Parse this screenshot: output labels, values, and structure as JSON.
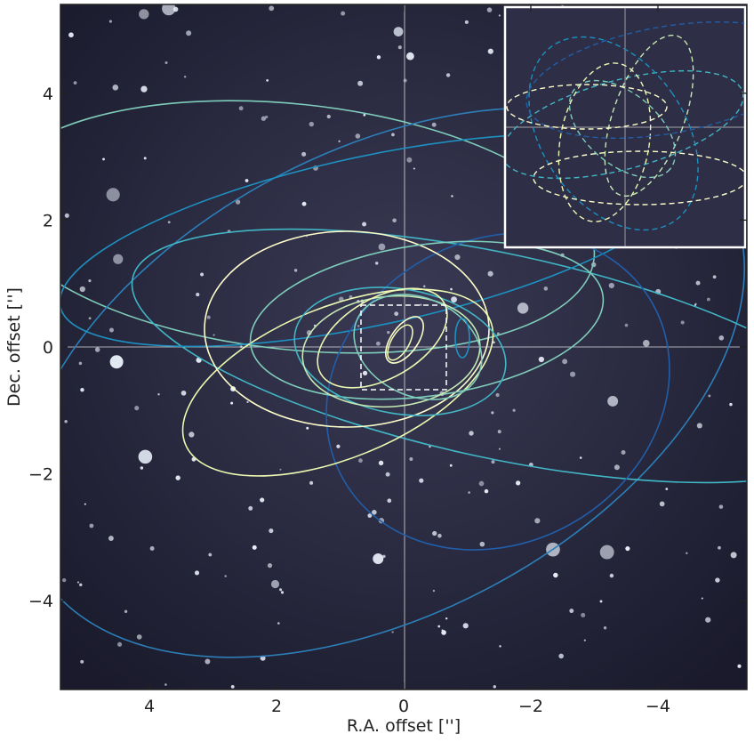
{
  "chart_data": {
    "type": "image",
    "x_label": "R.A. offset ['']",
    "y_label": "Dec. offset ['']",
    "xlim": [
      5.4,
      -5.4
    ],
    "ylim": [
      -5.4,
      5.4
    ],
    "xticks": [
      4,
      2,
      0,
      {
        "value": -2,
        "label": "−2"
      },
      {
        "value": -4,
        "label": "−4"
      }
    ],
    "yticks": [
      {
        "value": -4,
        "label": "−4"
      },
      {
        "value": -2,
        "label": "−2"
      },
      0,
      2,
      4
    ]
  }
}
